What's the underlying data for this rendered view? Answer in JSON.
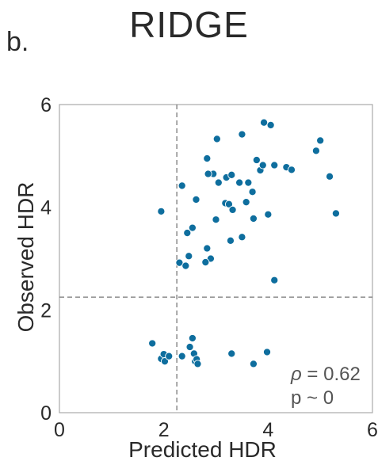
{
  "title": "RIDGE",
  "panel_label": "b.",
  "colors": {
    "point": "#0e6e9e",
    "point_edge": "#ffffff",
    "axis": "#a9a9a9",
    "threshold_line": "#777777",
    "text": "#2a2a2a",
    "annotation": "#555555"
  },
  "chart_data": {
    "type": "scatter",
    "title": "RIDGE",
    "xlabel": "Predicted HDR",
    "ylabel": "Observed HDR",
    "xlim": [
      0,
      6
    ],
    "ylim": [
      0,
      6
    ],
    "x_ticks": [
      "0",
      "2",
      "4",
      "6"
    ],
    "y_ticks": [
      "0",
      "2",
      "4",
      "6"
    ],
    "grid": false,
    "reference_lines": {
      "vertical_x": 2.25,
      "horizontal_y": 2.25,
      "style": "dashed"
    },
    "annotation": {
      "rho_symbol": "ρ",
      "rho_text": " = 0.62",
      "p_text": "p ~ 0",
      "placement": "bottom-right"
    },
    "points": [
      {
        "x": 1.95,
        "y": 3.92
      },
      {
        "x": 2.35,
        "y": 4.42
      },
      {
        "x": 2.62,
        "y": 4.15
      },
      {
        "x": 2.83,
        "y": 4.95
      },
      {
        "x": 2.95,
        "y": 4.65
      },
      {
        "x": 3.02,
        "y": 5.33
      },
      {
        "x": 2.85,
        "y": 4.65
      },
      {
        "x": 3.05,
        "y": 4.48
      },
      {
        "x": 3.2,
        "y": 4.58
      },
      {
        "x": 3.3,
        "y": 4.63
      },
      {
        "x": 3.45,
        "y": 4.48
      },
      {
        "x": 3.5,
        "y": 5.42
      },
      {
        "x": 3.62,
        "y": 4.48
      },
      {
        "x": 3.7,
        "y": 4.3
      },
      {
        "x": 3.78,
        "y": 4.92
      },
      {
        "x": 3.85,
        "y": 4.72
      },
      {
        "x": 3.92,
        "y": 5.65
      },
      {
        "x": 4.05,
        "y": 5.6
      },
      {
        "x": 3.9,
        "y": 4.82
      },
      {
        "x": 4.12,
        "y": 4.82
      },
      {
        "x": 4.35,
        "y": 4.78
      },
      {
        "x": 4.45,
        "y": 4.73
      },
      {
        "x": 4.92,
        "y": 5.1
      },
      {
        "x": 5.0,
        "y": 5.3
      },
      {
        "x": 5.18,
        "y": 4.6
      },
      {
        "x": 5.3,
        "y": 3.88
      },
      {
        "x": 3.18,
        "y": 4.08
      },
      {
        "x": 3.25,
        "y": 4.06
      },
      {
        "x": 3.58,
        "y": 4.1
      },
      {
        "x": 3.32,
        "y": 3.95
      },
      {
        "x": 3.72,
        "y": 3.78
      },
      {
        "x": 4.0,
        "y": 3.86
      },
      {
        "x": 3.0,
        "y": 3.76
      },
      {
        "x": 2.55,
        "y": 3.6
      },
      {
        "x": 2.45,
        "y": 3.5
      },
      {
        "x": 3.28,
        "y": 3.35
      },
      {
        "x": 3.5,
        "y": 3.42
      },
      {
        "x": 2.83,
        "y": 3.2
      },
      {
        "x": 2.48,
        "y": 3.05
      },
      {
        "x": 2.9,
        "y": 3.0
      },
      {
        "x": 2.8,
        "y": 2.93
      },
      {
        "x": 2.3,
        "y": 2.92
      },
      {
        "x": 2.42,
        "y": 2.86
      },
      {
        "x": 4.12,
        "y": 2.58
      },
      {
        "x": 1.78,
        "y": 1.35
      },
      {
        "x": 1.95,
        "y": 1.05
      },
      {
        "x": 2.0,
        "y": 1.14
      },
      {
        "x": 2.02,
        "y": 1.0
      },
      {
        "x": 2.1,
        "y": 1.1
      },
      {
        "x": 2.35,
        "y": 1.1
      },
      {
        "x": 2.5,
        "y": 1.28
      },
      {
        "x": 2.55,
        "y": 1.45
      },
      {
        "x": 2.58,
        "y": 1.15
      },
      {
        "x": 2.6,
        "y": 1.0
      },
      {
        "x": 2.63,
        "y": 1.04
      },
      {
        "x": 2.65,
        "y": 0.95
      },
      {
        "x": 3.3,
        "y": 1.15
      },
      {
        "x": 3.72,
        "y": 0.95
      },
      {
        "x": 3.98,
        "y": 1.18
      }
    ]
  }
}
